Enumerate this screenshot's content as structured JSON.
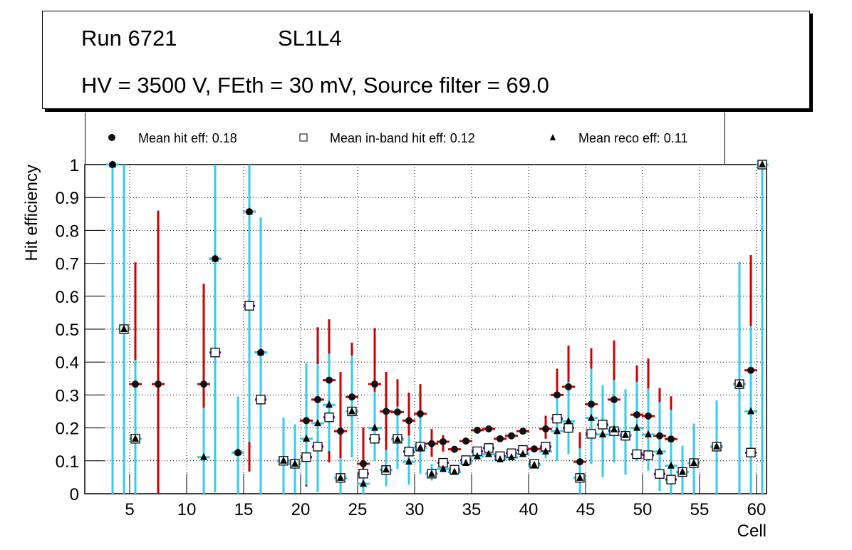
{
  "chart_data": {
    "type": "scatter",
    "title_lines": [
      "Run 6721",
      "SL1L4",
      "HV = 3500 V, FEth = 30 mV, Source filter = 69.0"
    ],
    "xlabel": "Cell",
    "ylabel": "Hit efficiency",
    "xlim": [
      0,
      61
    ],
    "ylim": [
      0,
      1
    ],
    "xticks": [
      5,
      10,
      15,
      20,
      25,
      30,
      35,
      40,
      45,
      50,
      55,
      60
    ],
    "yticks": [
      0,
      0.1,
      0.2,
      0.3,
      0.4,
      0.5,
      0.6,
      0.7,
      0.8,
      0.9,
      1
    ],
    "ytick_labels": [
      "0",
      "0.1",
      "0.2",
      "0.3",
      "0.4",
      "0.5",
      "0.6",
      "0.7",
      "0.8",
      "0.9",
      "1"
    ],
    "grid": true,
    "legend": [
      {
        "marker": "circle",
        "label": "Mean hit  eff: 0.18"
      },
      {
        "marker": "open-square",
        "label": "Mean in-band hit eff: 0.12"
      },
      {
        "marker": "triangle",
        "label": "Mean reco eff: 0.11"
      }
    ],
    "colors": {
      "hit_err": "#cc0000",
      "inband_err": "#6600cc",
      "reco_err": "#33ccee"
    },
    "series": [
      {
        "name": "hit",
        "points": [
          [
            3.5,
            1.0,
            0,
            0
          ],
          [
            4.5,
            0.5,
            0.5,
            0.5
          ],
          [
            5.5,
            0.333,
            0.33,
            0.37
          ],
          [
            7.5,
            0.333,
            0.333,
            0.527
          ],
          [
            11.5,
            0.333,
            0.33,
            0.305
          ],
          [
            12.5,
            0.714,
            0.7,
            0.3
          ],
          [
            14.5,
            0.125,
            0.125,
            0.17
          ],
          [
            15.5,
            0.857,
            0.79,
            0.14
          ],
          [
            16.5,
            0.429,
            0.43,
            0.41
          ],
          [
            18.5,
            0.1,
            0.1,
            0.13
          ],
          [
            19.5,
            0.091,
            0.09,
            0.12
          ],
          [
            20.5,
            0.222,
            0.2,
            0.165
          ],
          [
            21.5,
            0.286,
            0.24,
            0.22
          ],
          [
            22.5,
            0.345,
            0.25,
            0.185
          ],
          [
            23.5,
            0.19,
            0.09,
            0.18
          ],
          [
            24.5,
            0.294,
            0.15,
            0.165
          ],
          [
            25.5,
            0.091,
            0.05,
            0.11
          ],
          [
            26.5,
            0.333,
            0.15,
            0.17
          ],
          [
            27.5,
            0.25,
            0.13,
            0.12
          ],
          [
            28.5,
            0.248,
            0.1,
            0.1
          ],
          [
            29.5,
            0.222,
            0.08,
            0.085
          ],
          [
            30.5,
            0.243,
            0.07,
            0.09
          ],
          [
            31.5,
            0.152,
            0.04,
            0.045
          ],
          [
            32.5,
            0.158,
            0.03,
            0.02
          ],
          [
            33.5,
            0.135,
            0,
            0
          ],
          [
            34.5,
            0.16,
            0,
            0
          ],
          [
            35.5,
            0.193,
            0,
            0
          ],
          [
            36.5,
            0.197,
            0,
            0
          ],
          [
            37.5,
            0.167,
            0,
            0
          ],
          [
            38.5,
            0.176,
            0,
            0
          ],
          [
            39.5,
            0.19,
            0,
            0
          ],
          [
            40.5,
            0.136,
            0,
            0
          ],
          [
            41.5,
            0.197,
            0.03,
            0.04
          ],
          [
            42.5,
            0.3,
            0.11,
            0.08
          ],
          [
            43.5,
            0.325,
            0.13,
            0.125
          ],
          [
            44.5,
            0.097,
            0.06,
            0.09
          ],
          [
            45.5,
            0.272,
            0.13,
            0.17
          ],
          [
            47.5,
            0.286,
            0.12,
            0.18
          ],
          [
            49.5,
            0.24,
            0.11,
            0.15
          ],
          [
            50.5,
            0.236,
            0.11,
            0.175
          ],
          [
            51.5,
            0.176,
            0.1,
            0.145
          ],
          [
            52.5,
            0.166,
            0.1,
            0.13
          ],
          [
            53.5,
            0.066,
            0.05,
            0.08
          ],
          [
            54.5,
            0.093,
            0.05,
            0.12
          ],
          [
            56.5,
            0.143,
            0.1,
            0.14
          ],
          [
            58.5,
            0.333,
            0.3,
            0.37
          ],
          [
            59.5,
            0.375,
            0.3,
            0.35
          ],
          [
            60.5,
            1.0,
            0.3,
            0
          ]
        ]
      },
      {
        "name": "inband",
        "points": [
          [
            4.5,
            0.5
          ],
          [
            5.5,
            0.167
          ],
          [
            12.5,
            0.429
          ],
          [
            15.5,
            0.571
          ],
          [
            16.5,
            0.286
          ],
          [
            18.5,
            0.1
          ],
          [
            19.5,
            0.091
          ],
          [
            20.5,
            0.111
          ],
          [
            21.5,
            0.143
          ],
          [
            22.5,
            0.232
          ],
          [
            23.5,
            0.048
          ],
          [
            24.5,
            0.25
          ],
          [
            25.5,
            0.061
          ],
          [
            26.5,
            0.167
          ],
          [
            27.5,
            0.072
          ],
          [
            28.5,
            0.167
          ],
          [
            29.5,
            0.128
          ],
          [
            30.5,
            0.143
          ],
          [
            31.5,
            0.061
          ],
          [
            32.5,
            0.094
          ],
          [
            33.5,
            0.073
          ],
          [
            34.5,
            0.102
          ],
          [
            35.5,
            0.129
          ],
          [
            36.5,
            0.139
          ],
          [
            37.5,
            0.114
          ],
          [
            38.5,
            0.123
          ],
          [
            39.5,
            0.133
          ],
          [
            40.5,
            0.091
          ],
          [
            41.5,
            0.143
          ],
          [
            42.5,
            0.228
          ],
          [
            43.5,
            0.2
          ],
          [
            44.5,
            0.048
          ],
          [
            45.5,
            0.182
          ],
          [
            46.5,
            0.21
          ],
          [
            47.5,
            0.19
          ],
          [
            48.5,
            0.176
          ],
          [
            49.5,
            0.12
          ],
          [
            50.5,
            0.117
          ],
          [
            51.5,
            0.06
          ],
          [
            52.5,
            0.043
          ],
          [
            53.5,
            0.066
          ],
          [
            54.5,
            0.093
          ],
          [
            56.5,
            0.143
          ],
          [
            58.5,
            0.333
          ],
          [
            59.5,
            0.125
          ],
          [
            60.5,
            1.0
          ]
        ]
      },
      {
        "name": "reco",
        "points": [
          [
            3.5,
            1.0,
            1.0,
            0
          ],
          [
            4.5,
            0.5,
            0.5,
            0.5
          ],
          [
            5.5,
            0.167,
            0.167,
            0.24
          ],
          [
            11.5,
            0.111,
            0.111,
            0.15
          ],
          [
            12.5,
            0.714,
            0.71,
            0.29
          ],
          [
            14.5,
            0.125,
            0.125,
            0.17
          ],
          [
            15.5,
            0.857,
            0.7,
            0.143
          ],
          [
            16.5,
            0.429,
            0.43,
            0.41
          ],
          [
            18.5,
            0.1,
            0.1,
            0.13
          ],
          [
            19.5,
            0.091,
            0.09,
            0.12
          ],
          [
            20.5,
            0.167,
            0.14,
            0.23
          ],
          [
            21.5,
            0.214,
            0.21,
            0.18
          ],
          [
            22.5,
            0.27,
            0.14,
            0.155
          ],
          [
            23.5,
            0.048,
            0.048,
            0.06
          ],
          [
            24.5,
            0.25,
            0.14,
            0.17
          ],
          [
            25.5,
            0.03,
            0.03,
            0.03
          ],
          [
            26.5,
            0.2,
            0.1,
            0.11
          ],
          [
            27.5,
            0.073,
            0.05,
            0.06
          ],
          [
            28.5,
            0.165,
            0.09,
            0.1
          ],
          [
            29.5,
            0.097,
            0.07,
            0.08
          ],
          [
            30.5,
            0.14,
            0.08,
            0.09
          ],
          [
            31.5,
            0.06,
            0.02,
            0.03
          ],
          [
            32.5,
            0.075,
            0.01,
            0.01
          ],
          [
            33.5,
            0.066,
            0,
            0
          ],
          [
            34.5,
            0.093,
            0,
            0
          ],
          [
            35.5,
            0.113,
            0,
            0
          ],
          [
            36.5,
            0.12,
            0,
            0
          ],
          [
            37.5,
            0.104,
            0,
            0
          ],
          [
            38.5,
            0.11,
            0,
            0
          ],
          [
            39.5,
            0.12,
            0,
            0
          ],
          [
            40.5,
            0.087,
            0,
            0
          ],
          [
            41.5,
            0.128,
            0.02,
            0.02
          ],
          [
            42.5,
            0.19,
            0.09,
            0.1
          ],
          [
            43.5,
            0.22,
            0.1,
            0.12
          ],
          [
            44.5,
            0.048,
            0.048,
            0.09
          ],
          [
            45.5,
            0.23,
            0.14,
            0.15
          ],
          [
            46.5,
            0.18,
            0.13,
            0.15
          ],
          [
            47.5,
            0.195,
            0.1,
            0.15
          ],
          [
            48.5,
            0.178,
            0.12,
            0.14
          ],
          [
            49.5,
            0.2,
            0.1,
            0.14
          ],
          [
            50.5,
            0.18,
            0.11,
            0.14
          ],
          [
            51.5,
            0.128,
            0.12,
            0.15
          ],
          [
            52.5,
            0.085,
            0.085,
            0.17
          ],
          [
            53.5,
            0.066,
            0.066,
            0.08
          ],
          [
            54.5,
            0.093,
            0.093,
            0.12
          ],
          [
            56.5,
            0.143,
            0.143,
            0.14
          ],
          [
            58.5,
            0.333,
            0.333,
            0.37
          ],
          [
            59.5,
            0.25,
            0.25,
            0.26
          ],
          [
            60.5,
            1.0,
            1.0,
            0
          ]
        ]
      }
    ]
  }
}
